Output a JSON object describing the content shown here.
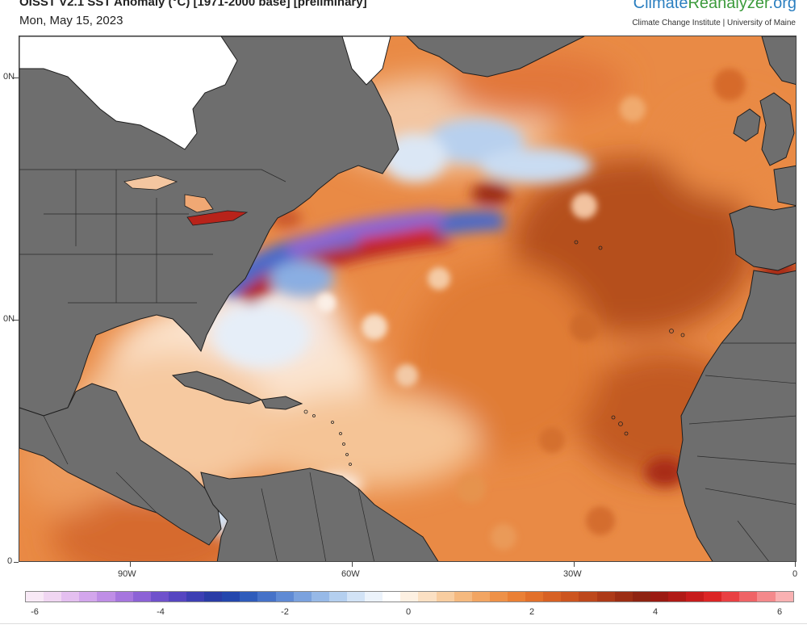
{
  "header": {
    "title": "OISST V2.1 SST Anomaly (°C) [1971-2000 base] [preliminary]",
    "date": "Mon, May 15, 2023",
    "brand_part1": "Climate",
    "brand_part2": "Reanalyzer",
    "brand_part3": ".org",
    "brand_sub": "Climate Change Institute | University of Maine"
  },
  "map": {
    "lat_labels": [
      "0N",
      "0N",
      "0"
    ],
    "lon_labels": [
      "90W",
      "60W",
      "30W",
      "0"
    ]
  },
  "colorbar": {
    "labels": [
      "-6",
      "-4",
      "-2",
      "0",
      "2",
      "4",
      "6"
    ],
    "colors": [
      "#f8e9f6",
      "#f0d6f2",
      "#e4bff0",
      "#d3a6ec",
      "#bf8ee6",
      "#a676de",
      "#8c62d6",
      "#6f51cc",
      "#5646c1",
      "#3d3fb4",
      "#2a3ca6",
      "#2447ad",
      "#2f5cbb",
      "#4672c8",
      "#5f8ad4",
      "#7ba2de",
      "#97b9e7",
      "#b4cfef",
      "#d2e3f6",
      "#ecf3fb",
      "#ffffff",
      "#fdf0e2",
      "#fbe0c3",
      "#f8cda0",
      "#f5b97f",
      "#f2a562",
      "#ee9148",
      "#ea8035",
      "#e2702a",
      "#d76124",
      "#cc5520",
      "#bd481c",
      "#ad3a18",
      "#9c2e14",
      "#8e2412",
      "#9b1a12",
      "#b01a16",
      "#c71c1c",
      "#dc2626",
      "#e94043",
      "#ef6366",
      "#f4898b",
      "#f9b1b2"
    ]
  }
}
